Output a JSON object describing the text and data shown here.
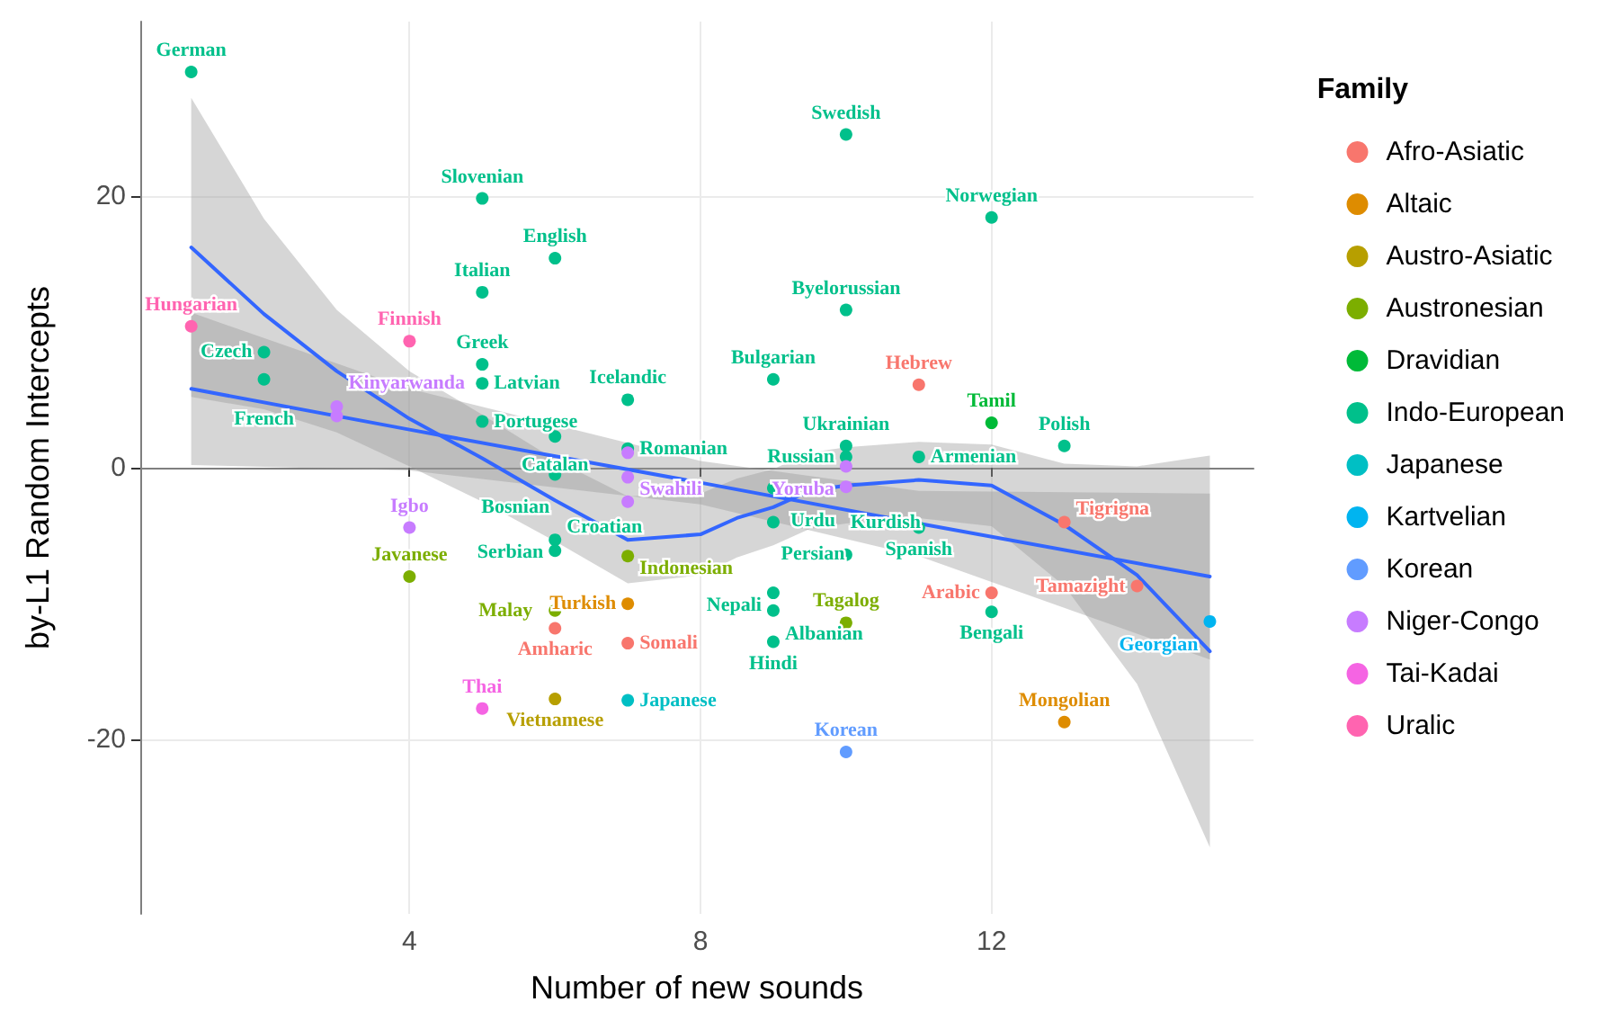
{
  "chart_data": {
    "type": "scatter",
    "xlabel": "Number of new sounds",
    "ylabel": "by-L1 Random Intercepts",
    "legend_title": "Family",
    "legend": "right",
    "grid": true,
    "marker": "circle",
    "xlim": [
      0.3,
      15.6
    ],
    "ylim": [
      -32.8,
      32.8
    ],
    "xticks": [
      4,
      8,
      12
    ],
    "yticks": [
      -20,
      0,
      20
    ],
    "series": [
      {
        "name": "Afro-Asiatic",
        "color": "#f8766d",
        "x": [
          11,
          13,
          14,
          12,
          6,
          7
        ],
        "values": [
          6.1,
          -4.0,
          -8.7,
          -9.2,
          -11.8,
          -12.9
        ],
        "value_labels": [
          "Hebrew",
          "Tigrigna",
          "Tamazight",
          "Arabic",
          "Amharic",
          "Somali"
        ]
      },
      {
        "name": "Altaic",
        "color": "#de8c00",
        "x": [
          7,
          13
        ],
        "values": [
          -10.0,
          -18.7
        ],
        "value_labels": [
          "Turkish",
          "Mongolian"
        ]
      },
      {
        "name": "Austro-Asiatic",
        "color": "#b79f00",
        "x": [
          6
        ],
        "values": [
          -17.0
        ],
        "value_labels": [
          "Vietnamese"
        ]
      },
      {
        "name": "Austronesian",
        "color": "#7cae00",
        "x": [
          4,
          7,
          6,
          10
        ],
        "values": [
          -8.0,
          -6.5,
          -10.5,
          -11.4
        ],
        "value_labels": [
          "Javanese",
          "Indonesian",
          "Malay",
          "Tagalog"
        ]
      },
      {
        "name": "Dravidian",
        "color": "#00ba38",
        "x": [
          12
        ],
        "values": [
          3.3
        ],
        "value_labels": [
          "Tamil"
        ]
      },
      {
        "name": "Indo-European",
        "color": "#00c08b",
        "x": [
          1,
          2,
          2,
          5,
          6,
          5,
          5,
          5,
          5,
          6,
          7,
          7,
          6,
          6,
          6,
          10,
          12,
          10,
          9,
          10,
          10,
          11,
          13,
          9,
          9,
          11,
          10,
          12,
          9,
          9,
          9
        ],
        "values": [
          29.1,
          8.5,
          6.5,
          19.8,
          15.4,
          12.9,
          7.6,
          6.2,
          3.4,
          2.3,
          5.0,
          1.4,
          -0.5,
          -5.3,
          -6.1,
          24.5,
          18.4,
          11.6,
          6.5,
          1.6,
          0.8,
          0.8,
          1.6,
          -1.5,
          -4.0,
          -4.4,
          -6.4,
          -10.6,
          -9.2,
          -10.5,
          -12.8
        ],
        "value_labels": [
          "German",
          "Czech",
          "French",
          "Slovenian",
          "English",
          "Italian",
          "Greek",
          "Latvian",
          "Portugese",
          "Catalan",
          "Icelandic",
          "Romanian",
          "Bosnian",
          "Serbian",
          "Croatian",
          "Swedish",
          "Norwegian",
          "Byelorussian",
          "Bulgarian",
          "Ukrainian",
          "Russian",
          "Armenian",
          "Polish",
          "Urdu",
          "Persian",
          "Spanish",
          "Kurdish",
          "Bengali",
          "Nepali",
          "Albanian",
          "Hindi"
        ]
      },
      {
        "name": "Japanese",
        "color": "#00bfc4",
        "x": [
          7
        ],
        "values": [
          -17.1
        ],
        "value_labels": [
          "Japanese"
        ]
      },
      {
        "name": "Kartvelian",
        "color": "#00b4f0",
        "x": [
          15
        ],
        "values": [
          -11.3
        ],
        "value_labels": [
          "Georgian"
        ]
      },
      {
        "name": "Korean",
        "color": "#619cff",
        "x": [
          10
        ],
        "values": [
          -20.9
        ],
        "value_labels": [
          "Korean"
        ]
      },
      {
        "name": "Niger-Congo",
        "color": "#c77cff",
        "x": [
          3,
          3,
          7,
          7,
          7,
          4,
          10,
          10
        ],
        "values": [
          4.5,
          3.8,
          1.1,
          -0.7,
          -2.5,
          -4.4,
          0.1,
          -1.4
        ],
        "value_labels": [
          "Kinyarwanda",
          null,
          null,
          null,
          "Swahili",
          "Igbo",
          "Yoruba",
          null
        ]
      },
      {
        "name": "Tai-Kadai",
        "color": "#f564e3",
        "x": [
          5
        ],
        "values": [
          -17.7
        ],
        "value_labels": [
          "Thai"
        ]
      },
      {
        "name": "Uralic",
        "color": "#ff64b0",
        "x": [
          1,
          4
        ],
        "values": [
          10.4,
          9.3
        ],
        "value_labels": [
          "Hungarian",
          "Finnish"
        ]
      },
      {
        "type": "line",
        "color": "#3366ff",
        "line_style": "solid",
        "marker": "none",
        "x": [
          1,
          4,
          8,
          11,
          15
        ],
        "values": [
          5.8,
          2.8,
          -1.1,
          -4.1,
          -8.0
        ],
        "lower": [
          0.2,
          -0.2,
          -2.7,
          -6.5,
          -14.1
        ],
        "upper": [
          11.4,
          5.8,
          0.5,
          -1.7,
          -1.9
        ]
      },
      {
        "type": "line",
        "color": "#3366ff",
        "line_style": "solid",
        "marker": "none",
        "x": [
          1,
          2,
          3,
          4,
          5,
          6,
          7,
          8,
          8.5,
          9,
          9.5,
          10,
          11,
          12,
          13,
          14,
          15
        ],
        "values": [
          16.2,
          11.3,
          7.1,
          3.6,
          0.7,
          -2.4,
          -5.3,
          -4.9,
          -3.7,
          -2.9,
          -1.7,
          -1.3,
          -0.9,
          -1.3,
          -4.2,
          -7.9,
          -13.5
        ],
        "lower": [
          5.2,
          4.3,
          2.6,
          0.1,
          -2.5,
          -5.4,
          -8.5,
          -7.9,
          -6.6,
          -5.7,
          -4.5,
          -4.1,
          -3.7,
          -4.3,
          -8.7,
          -15.9,
          -27.9
        ],
        "upper": [
          27.2,
          18.3,
          11.6,
          7.1,
          3.9,
          0.6,
          -2.1,
          -1.9,
          -0.8,
          -0.1,
          1.1,
          1.5,
          1.9,
          1.7,
          0.3,
          0.1,
          0.9
        ]
      }
    ]
  }
}
